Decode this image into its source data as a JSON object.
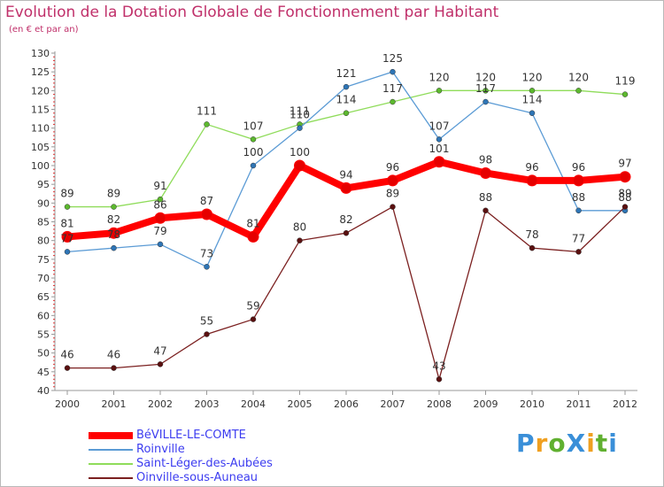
{
  "chart_data": {
    "type": "line",
    "title": "Evolution de la Dotation Globale de Fonctionnement par Habitant",
    "subtitle": "(en € et par an)",
    "x": [
      "2000",
      "2001",
      "2002",
      "2003",
      "2004",
      "2005",
      "2006",
      "2007",
      "2008",
      "2009",
      "2010",
      "2011",
      "2012"
    ],
    "ylim": [
      40,
      130
    ],
    "yticks": [
      40,
      45,
      50,
      55,
      60,
      65,
      70,
      75,
      80,
      85,
      90,
      95,
      100,
      105,
      110,
      115,
      120,
      125,
      130
    ],
    "grid": false,
    "legend_position": "bottom-left",
    "series": [
      {
        "name": "BéVILLE-LE-COMTE",
        "color": "#ff0000",
        "marker": "#e60000",
        "values": [
          81,
          82,
          86,
          87,
          81,
          100,
          94,
          96,
          101,
          98,
          96,
          96,
          97
        ]
      },
      {
        "name": "Roinville",
        "color": "#5b9bd5",
        "marker": "#2e75b6",
        "values": [
          77,
          78,
          79,
          73,
          100,
          110,
          121,
          125,
          107,
          117,
          114,
          88,
          88
        ]
      },
      {
        "name": "Saint-Léger-des-Aubées",
        "color": "#8fdc5a",
        "marker": "#5cb82e",
        "values": [
          89,
          89,
          91,
          111,
          107,
          111,
          114,
          117,
          120,
          120,
          120,
          120,
          119
        ]
      },
      {
        "name": "Oinville-sous-Auneau",
        "color": "#7b2020",
        "marker": "#5a1010",
        "values": [
          46,
          46,
          47,
          55,
          59,
          80,
          82,
          89,
          43,
          88,
          78,
          77,
          89
        ]
      }
    ]
  },
  "logo": {
    "text": "ProXiti"
  }
}
